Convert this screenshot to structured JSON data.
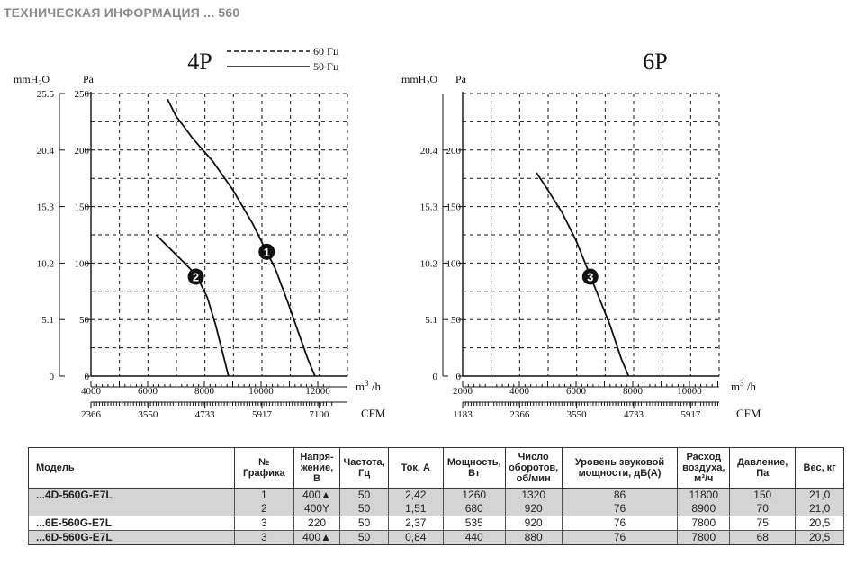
{
  "page_title": "ТЕХНИЧЕСКАЯ ИНФОРМАЦИЯ ... 560",
  "chart_data": [
    {
      "type": "line",
      "title": "4P",
      "ylabel_mmh2o": "mmH2O",
      "ylabel_pa": "Pa",
      "xlabel_m3h": "m³/h",
      "xlabel_cfm": "CFM",
      "xlim_m3h": [
        4000,
        12500
      ],
      "ylim_pa": [
        0,
        250
      ],
      "grid": true,
      "legend_position": "top-right",
      "legend": [
        {
          "label": "60 Гц",
          "style": "dashed"
        },
        {
          "label": "50 Гц",
          "style": "solid"
        }
      ],
      "x_ticks_m3h": [
        "4000",
        "6000",
        "8000",
        "10000",
        "12000"
      ],
      "x_ticks_cfm": [
        "2366",
        "3550",
        "4733",
        "5917",
        "7100"
      ],
      "y_ticks_pa": [
        "0",
        "50",
        "100",
        "150",
        "200",
        "250"
      ],
      "y_ticks_mmh2o": [
        "0",
        "5.1",
        "10.2",
        "15.3",
        "20.4",
        "25.5"
      ],
      "series": [
        {
          "marker": "1",
          "marker_at": [
            10200,
            110
          ],
          "x": [
            6700,
            7000,
            7600,
            8300,
            9000,
            9700,
            10100,
            10500,
            10950,
            11300,
            11650,
            11900
          ],
          "y": [
            245,
            230,
            210,
            190,
            165,
            135,
            115,
            95,
            65,
            40,
            15,
            0
          ]
        },
        {
          "marker": "2",
          "marker_at": [
            7700,
            88
          ],
          "x": [
            6300,
            6700,
            7100,
            7500,
            7800,
            8100,
            8400,
            8700,
            8850
          ],
          "y": [
            125,
            115,
            105,
            95,
            85,
            70,
            45,
            15,
            0
          ]
        }
      ]
    },
    {
      "type": "line",
      "title": "6P",
      "ylabel_mmh2o": "mmH2O",
      "ylabel_pa": "Pa",
      "xlabel_m3h": "m³/h",
      "xlabel_cfm": "CFM",
      "xlim_m3h": [
        2000,
        11300
      ],
      "ylim_pa": [
        0,
        250
      ],
      "grid": true,
      "x_ticks_m3h": [
        "2000",
        "4000",
        "6000",
        "8000",
        "10000"
      ],
      "x_ticks_cfm": [
        "1183",
        "2366",
        "3550",
        "4733",
        "5917"
      ],
      "y_ticks_pa": [
        "0",
        "50",
        "100",
        "150",
        "200"
      ],
      "y_ticks_mmh2o": [
        "0",
        "5.1",
        "10.2",
        "15.3",
        "20.4"
      ],
      "series": [
        {
          "marker": "3",
          "marker_at": [
            6500,
            88
          ],
          "x": [
            4600,
            5000,
            5500,
            6000,
            6400,
            6800,
            7200,
            7600,
            7850
          ],
          "y": [
            180,
            165,
            145,
            120,
            95,
            70,
            45,
            15,
            0
          ]
        }
      ]
    }
  ],
  "table": {
    "headers": [
      "Модель",
      "№ Графика",
      "Напря-жение, В",
      "Частота, Гц",
      "Ток, А",
      "Мощность, Вт",
      "Число оборотов, об/мин",
      "Уровень звуковой мощности, дБ(А)",
      "Расход воздуха, м³/ч",
      "Давление, Па",
      "Вес, кг"
    ],
    "rows": [
      [
        "...4D-560G-E7L",
        "1",
        "400▲",
        "50",
        "2,42",
        "1260",
        "1320",
        "86",
        "11800",
        "150",
        "21,0"
      ],
      [
        "",
        "2",
        "400Y",
        "50",
        "1,51",
        "680",
        "920",
        "76",
        "8900",
        "70",
        "21,0"
      ],
      [
        "...6E-560G-E7L",
        "3",
        "220",
        "50",
        "2,37",
        "535",
        "920",
        "76",
        "7800",
        "75",
        "20,5"
      ],
      [
        "...6D-560G-E7L",
        "3",
        "400▲",
        "50",
        "0,84",
        "440",
        "880",
        "76",
        "7800",
        "68",
        "20,5"
      ]
    ]
  }
}
